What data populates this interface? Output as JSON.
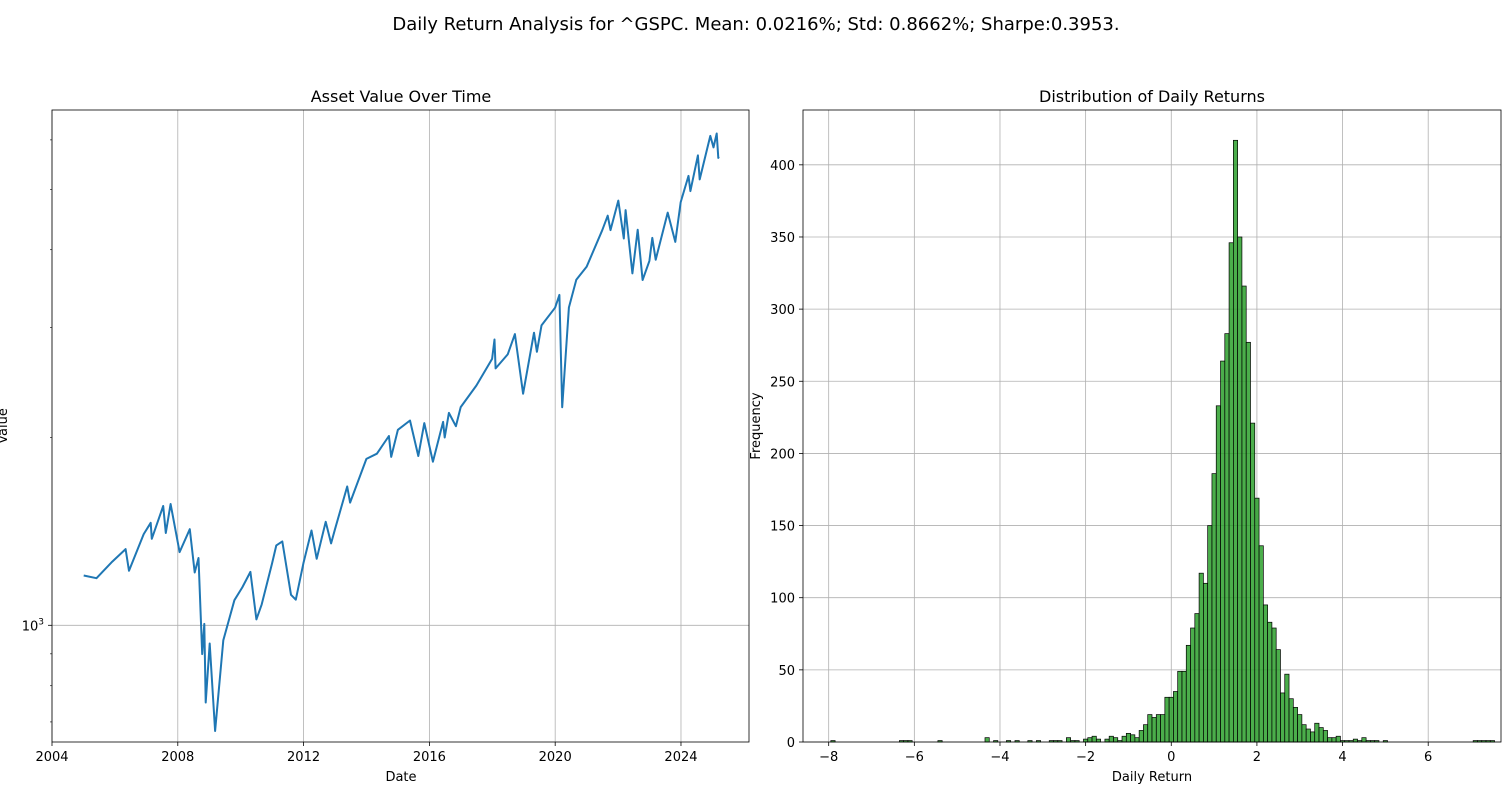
{
  "figure": {
    "title": "Daily Return Analysis for ^GSPC. Mean: 0.0216%; Std: 0.8662%; Sharpe:0.3953."
  },
  "chart_data": [
    {
      "type": "line",
      "title": "Asset Value Over Time",
      "xlabel": "Date",
      "ylabel": "Value",
      "yscale": "log",
      "grid": true,
      "color": "#1f77b4",
      "xlim": [
        "2004-01-01",
        "2026-03-01"
      ],
      "ylim": [
        650,
        6700
      ],
      "x_ticks": [
        "2004",
        "2008",
        "2012",
        "2016",
        "2020",
        "2024"
      ],
      "y_ticks": [
        {
          "value": 1000,
          "base": "10",
          "exp": "3"
        }
      ],
      "series": [
        {
          "x": [
            "2005-01-03",
            "2005-06-01",
            "2005-12-01",
            "2006-05-05",
            "2006-06-13",
            "2006-12-01",
            "2007-02-20",
            "2007-03-05",
            "2007-07-16",
            "2007-08-15",
            "2007-10-09",
            "2008-01-22",
            "2008-05-19",
            "2008-07-15",
            "2008-08-29",
            "2008-10-10",
            "2008-11-04",
            "2008-11-20",
            "2009-01-06",
            "2009-03-09",
            "2009-06-12",
            "2009-10-19",
            "2010-01-19",
            "2010-04-23",
            "2010-07-02",
            "2010-09-01",
            "2010-12-31",
            "2011-02-18",
            "2011-04-29",
            "2011-08-08",
            "2011-10-03",
            "2011-12-30",
            "2012-04-02",
            "2012-06-01",
            "2012-09-14",
            "2012-11-15",
            "2012-12-31",
            "2013-05-21",
            "2013-06-24",
            "2013-12-31",
            "2014-05-01",
            "2014-09-18",
            "2014-10-15",
            "2014-12-31",
            "2015-05-21",
            "2015-08-25",
            "2015-11-03",
            "2016-02-11",
            "2016-06-08",
            "2016-06-27",
            "2016-08-15",
            "2016-11-04",
            "2016-12-30",
            "2017-06-30",
            "2017-12-29",
            "2018-01-26",
            "2018-02-08",
            "2018-06-29",
            "2018-09-20",
            "2018-12-24",
            "2019-04-30",
            "2019-06-03",
            "2019-07-26",
            "2019-12-31",
            "2020-02-19",
            "2020-03-23",
            "2020-06-08",
            "2020-09-02",
            "2020-12-31",
            "2021-06-30",
            "2021-09-02",
            "2021-10-04",
            "2022-01-03",
            "2022-03-08",
            "2022-03-29",
            "2022-06-16",
            "2022-08-16",
            "2022-10-12",
            "2022-12-30",
            "2023-02-02",
            "2023-03-13",
            "2023-07-31",
            "2023-10-27",
            "2023-12-29",
            "2024-03-28",
            "2024-04-19",
            "2024-07-16",
            "2024-08-05",
            "2024-12-06",
            "2025-01-13",
            "2025-02-19",
            "2025-03-10",
            "2025-03-14"
          ],
          "y": [
            1202,
            1190,
            1265,
            1325,
            1223,
            1400,
            1460,
            1376,
            1553,
            1406,
            1565,
            1310,
            1426,
            1215,
            1282,
            899,
            1005,
            752,
            935,
            677,
            946,
            1097,
            1150,
            1218,
            1022,
            1080,
            1257,
            1343,
            1363,
            1119,
            1099,
            1257,
            1419,
            1278,
            1465,
            1353,
            1426,
            1669,
            1573,
            1848,
            1884,
            2011,
            1862,
            2058,
            2130,
            1868,
            2109,
            1829,
            2119,
            2000,
            2190,
            2085,
            2238,
            2423,
            2673,
            2872,
            2581,
            2718,
            2930,
            2351,
            2945,
            2744,
            3025,
            3230,
            3386,
            2237,
            3232,
            3580,
            3756,
            4297,
            4536,
            4300,
            4796,
            4170,
            4631,
            3666,
            4305,
            3577,
            3839,
            4179,
            3855,
            4588,
            4117,
            4769,
            5254,
            4967,
            5667,
            5186,
            6090,
            5836,
            6144,
            5614,
            5639
          ]
        }
      ]
    },
    {
      "type": "bar",
      "title": "Distribution of Daily Returns",
      "xlabel": "Daily Return",
      "ylabel": "Frequency",
      "grid": true,
      "color": "#2ca02c",
      "edgecolor": "#000000",
      "xlim": [
        -8.6,
        7.7
      ],
      "ylim": [
        0,
        438
      ],
      "x_ticks": [
        -8,
        -6,
        -4,
        -2,
        0,
        2,
        4,
        6
      ],
      "y_ticks": [
        0,
        50,
        100,
        150,
        200,
        250,
        300,
        350,
        400
      ],
      "bin_start": -7.95,
      "bin_width": 0.1,
      "values": [
        1,
        0,
        0,
        0,
        0,
        0,
        0,
        0,
        0,
        0,
        0,
        0,
        0,
        0,
        0,
        0,
        1,
        1,
        1,
        0,
        0,
        0,
        0,
        0,
        0,
        1,
        0,
        0,
        0,
        0,
        0,
        0,
        0,
        0,
        0,
        0,
        3,
        0,
        1,
        0,
        0,
        1,
        0,
        1,
        0,
        0,
        1,
        0,
        1,
        0,
        0,
        1,
        1,
        1,
        0,
        3,
        1,
        1,
        0,
        2,
        3,
        4,
        2,
        0,
        2,
        4,
        3,
        1,
        4,
        6,
        5,
        3,
        8,
        12,
        19,
        17,
        19,
        19,
        31,
        31,
        35,
        49,
        49,
        67,
        79,
        89,
        117,
        110,
        150,
        186,
        233,
        264,
        283,
        346,
        417,
        350,
        316,
        277,
        221,
        169,
        136,
        95,
        83,
        79,
        64,
        34,
        47,
        30,
        24,
        19,
        12,
        9,
        7,
        13,
        10,
        8,
        3,
        3,
        4,
        1,
        1,
        1,
        2,
        1,
        3,
        1,
        1,
        1,
        0,
        1,
        0,
        0,
        0,
        0,
        0,
        0,
        0,
        0,
        0,
        0,
        0,
        0,
        0,
        0,
        0,
        0,
        0,
        0,
        0,
        0,
        1,
        1,
        1,
        1,
        1,
        0,
        0,
        0,
        0,
        0,
        0,
        0,
        0,
        0,
        0,
        0,
        1,
        0,
        0,
        0,
        0,
        0,
        0,
        0,
        0,
        1
      ]
    }
  ]
}
